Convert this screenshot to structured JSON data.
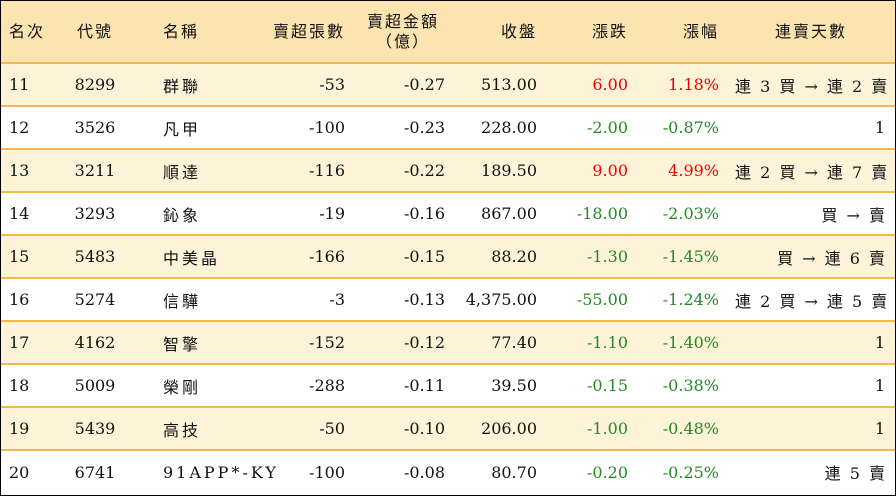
{
  "header": {
    "rank": "名次",
    "code": "代號",
    "name": "名稱",
    "sell_lots": "賣超張數",
    "sell_amount_line1": "賣超金額",
    "sell_amount_line2": "（億）",
    "close": "收盤",
    "change": "漲跌",
    "change_pct": "漲幅",
    "streak": "連賣天數"
  },
  "colors": {
    "header_bg": "#fce4b0",
    "stripe_bg": "#fdf3d9",
    "row_border": "#f5b84a",
    "up": "#ee0000",
    "down": "#228b22"
  },
  "rows": [
    {
      "rank": "11",
      "code": "8299",
      "name": "群聯",
      "sell_lots": "-53",
      "sell_amount": "-0.27",
      "close": "513.00",
      "change": "6.00",
      "change_pct": "1.18%",
      "streak": "連 3 買 → 連 2 賣",
      "dir": "up"
    },
    {
      "rank": "12",
      "code": "3526",
      "name": "凡甲",
      "sell_lots": "-100",
      "sell_amount": "-0.23",
      "close": "228.00",
      "change": "-2.00",
      "change_pct": "-0.87%",
      "streak": "1",
      "dir": "down"
    },
    {
      "rank": "13",
      "code": "3211",
      "name": "順達",
      "sell_lots": "-116",
      "sell_amount": "-0.22",
      "close": "189.50",
      "change": "9.00",
      "change_pct": "4.99%",
      "streak": "連 2 買 → 連 7 賣",
      "dir": "up"
    },
    {
      "rank": "14",
      "code": "3293",
      "name": "鈊象",
      "sell_lots": "-19",
      "sell_amount": "-0.16",
      "close": "867.00",
      "change": "-18.00",
      "change_pct": "-2.03%",
      "streak": "買 → 賣",
      "dir": "down"
    },
    {
      "rank": "15",
      "code": "5483",
      "name": "中美晶",
      "sell_lots": "-166",
      "sell_amount": "-0.15",
      "close": "88.20",
      "change": "-1.30",
      "change_pct": "-1.45%",
      "streak": "買 → 連 6 賣",
      "dir": "down"
    },
    {
      "rank": "16",
      "code": "5274",
      "name": "信驊",
      "sell_lots": "-3",
      "sell_amount": "-0.13",
      "close": "4,375.00",
      "change": "-55.00",
      "change_pct": "-1.24%",
      "streak": "連 2 買 → 連 5 賣",
      "dir": "down"
    },
    {
      "rank": "17",
      "code": "4162",
      "name": "智擎",
      "sell_lots": "-152",
      "sell_amount": "-0.12",
      "close": "77.40",
      "change": "-1.10",
      "change_pct": "-1.40%",
      "streak": "1",
      "dir": "down"
    },
    {
      "rank": "18",
      "code": "5009",
      "name": "榮剛",
      "sell_lots": "-288",
      "sell_amount": "-0.11",
      "close": "39.50",
      "change": "-0.15",
      "change_pct": "-0.38%",
      "streak": "1",
      "dir": "down"
    },
    {
      "rank": "19",
      "code": "5439",
      "name": "高技",
      "sell_lots": "-50",
      "sell_amount": "-0.10",
      "close": "206.00",
      "change": "-1.00",
      "change_pct": "-0.48%",
      "streak": "1",
      "dir": "down"
    },
    {
      "rank": "20",
      "code": "6741",
      "name": "91APP*-KY",
      "sell_lots": "-100",
      "sell_amount": "-0.08",
      "close": "80.70",
      "change": "-0.20",
      "change_pct": "-0.25%",
      "streak": "連 5 賣",
      "dir": "down"
    }
  ]
}
